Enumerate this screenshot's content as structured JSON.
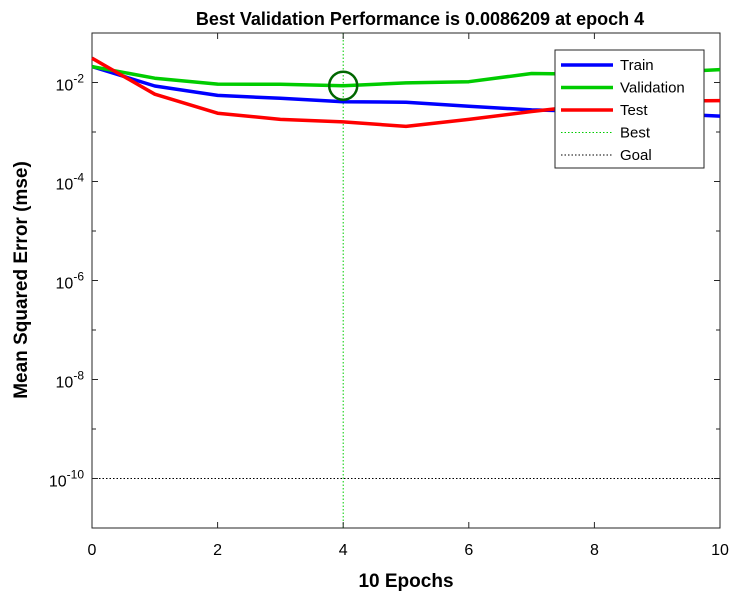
{
  "chart_data": {
    "type": "line",
    "title": "Best Validation Performance is 0.0086209 at epoch 4",
    "xlabel": "10 Epochs",
    "ylabel": "Mean Squared Error  (mse)",
    "xlim": [
      0,
      10
    ],
    "ylim_log10": [
      -11,
      -1
    ],
    "yscale": "log",
    "grid": false,
    "legend_position": "top-right",
    "x_ticks": [
      0,
      2,
      4,
      6,
      8,
      10
    ],
    "y_ticks": [
      {
        "exp": -10,
        "base": "10",
        "sup": "-10"
      },
      {
        "exp": -8,
        "base": "10",
        "sup": "-8"
      },
      {
        "exp": -6,
        "base": "10",
        "sup": "-6"
      },
      {
        "exp": -4,
        "base": "10",
        "sup": "-4"
      },
      {
        "exp": -2,
        "base": "10",
        "sup": "-2"
      }
    ],
    "x": [
      0,
      1,
      2,
      3,
      4,
      5,
      6,
      7,
      8,
      9,
      10
    ],
    "series": [
      {
        "name": "Train",
        "color": "#0000ff",
        "values": [
          0.021,
          0.0085,
          0.0055,
          0.0048,
          0.0041,
          0.004,
          0.0033,
          0.0028,
          0.0026,
          0.0024,
          0.0021
        ]
      },
      {
        "name": "Validation",
        "color": "#00cc00",
        "values": [
          0.021,
          0.0122,
          0.0093,
          0.0092,
          0.0086209,
          0.0098,
          0.0104,
          0.0152,
          0.0147,
          0.0157,
          0.0182
        ]
      },
      {
        "name": "Test",
        "color": "#ff0000",
        "values": [
          0.031,
          0.0058,
          0.0024,
          0.0018,
          0.0016,
          0.0013,
          0.0018,
          0.0026,
          0.0036,
          0.0042,
          0.0043
        ]
      }
    ],
    "best": {
      "label": "Best",
      "epoch": 4,
      "value": 0.0086209,
      "color": "#00cc00",
      "marker_color": "#006600"
    },
    "goal": {
      "label": "Goal",
      "value": 1e-10,
      "color": "#000000"
    }
  }
}
